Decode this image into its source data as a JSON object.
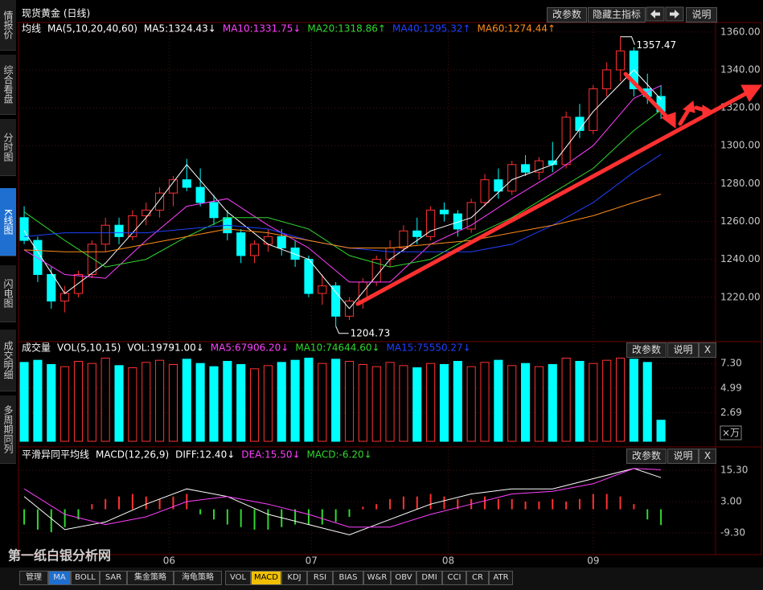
{
  "ui": {
    "sidebar": [
      "情报价",
      "综合看盘",
      "分时图",
      "K线图",
      "闪电图",
      "成交明细",
      "多周期同列"
    ],
    "main_buttons": [
      "改参数",
      "隐藏主指标",
      "说明"
    ],
    "vol_buttons": [
      "改参数",
      "说明",
      "X"
    ],
    "macd_buttons": [
      "改参数",
      "说明",
      "X"
    ],
    "toolbar": [
      "管理",
      "MA",
      "BOLL",
      "SAR",
      "集金策略",
      "海龟策略",
      "VOL",
      "MACD",
      "KDJ",
      "RSI",
      "BIAS",
      "W&R",
      "OBV",
      "DMI",
      "CCI",
      "CR",
      "ATR"
    ],
    "watermark": "第一纸白银分析网"
  },
  "chart_data": [
    {
      "type": "candlestick",
      "title": "现货黄金 (日线)",
      "label": "均线",
      "params": "MA(5,10,20,40,60)",
      "up_color": "#ff3232",
      "down_color": "#00ffff",
      "open": [
        1262,
        1250,
        1232,
        1218,
        1222,
        1232,
        1248,
        1258,
        1252,
        1263,
        1266,
        1275,
        1282,
        1278,
        1270,
        1262,
        1254,
        1242,
        1248,
        1252,
        1246,
        1240,
        1222,
        1226,
        1210,
        1218,
        1228,
        1240,
        1246,
        1255,
        1252,
        1266,
        1264,
        1256,
        1270,
        1282,
        1276,
        1290,
        1286,
        1292,
        1290,
        1315,
        1308,
        1330,
        1340,
        1350,
        1330,
        1326
      ],
      "high": [
        1268,
        1252,
        1236,
        1226,
        1234,
        1250,
        1262,
        1262,
        1266,
        1270,
        1278,
        1284,
        1293,
        1288,
        1274,
        1266,
        1256,
        1250,
        1256,
        1256,
        1250,
        1242,
        1232,
        1228,
        1220,
        1230,
        1242,
        1250,
        1258,
        1262,
        1268,
        1270,
        1266,
        1272,
        1285,
        1288,
        1292,
        1295,
        1294,
        1302,
        1318,
        1322,
        1332,
        1344,
        1357.47,
        1352,
        1338,
        1332
      ],
      "low": [
        1248,
        1228,
        1214,
        1212,
        1220,
        1230,
        1244,
        1248,
        1250,
        1258,
        1262,
        1268,
        1276,
        1268,
        1258,
        1250,
        1238,
        1238,
        1244,
        1242,
        1236,
        1220,
        1216,
        1204.73,
        1208,
        1214,
        1226,
        1236,
        1244,
        1248,
        1250,
        1260,
        1252,
        1254,
        1268,
        1272,
        1274,
        1284,
        1282,
        1286,
        1288,
        1304,
        1306,
        1326,
        1334,
        1326,
        1322,
        1314
      ],
      "close": [
        1250,
        1232,
        1218,
        1222,
        1232,
        1248,
        1258,
        1252,
        1263,
        1266,
        1275,
        1282,
        1278,
        1270,
        1262,
        1254,
        1242,
        1248,
        1252,
        1246,
        1240,
        1222,
        1226,
        1210,
        1218,
        1228,
        1240,
        1246,
        1255,
        1252,
        1266,
        1264,
        1256,
        1270,
        1282,
        1276,
        1290,
        1286,
        1292,
        1290,
        1315,
        1308,
        1330,
        1340,
        1350,
        1330,
        1326,
        1318
      ],
      "high_label": "1357.47",
      "low_label": "1204.73",
      "xlim": [
        -0.36,
        51.03
      ],
      "xticks": [
        {
          "value": 10.7,
          "label": "06"
        },
        {
          "value": 21.2,
          "label": "07"
        },
        {
          "value": 31.3,
          "label": "08"
        },
        {
          "value": 42,
          "label": "09"
        }
      ],
      "ylim": [
        1197,
        1365
      ],
      "yticks": [
        {
          "value": 1220,
          "label": "1220.00"
        },
        {
          "value": 1240,
          "label": "1240.00"
        },
        {
          "value": 1260,
          "label": "1260.00"
        },
        {
          "value": 1280,
          "label": "1280.00"
        },
        {
          "value": 1300,
          "label": "1300.00"
        },
        {
          "value": 1320,
          "label": "1320.00"
        },
        {
          "value": 1340,
          "label": "1340.00"
        },
        {
          "value": 1360,
          "label": "1360.00"
        }
      ],
      "series": [
        {
          "name": "MA5:1324.43↓",
          "color": "#ffffff",
          "x": [
            0,
            3,
            6,
            9,
            12,
            15,
            18,
            21,
            24,
            27,
            30,
            33,
            36,
            39,
            42,
            45,
            47
          ],
          "values": [
            1255,
            1222,
            1238,
            1262,
            1290,
            1265,
            1248,
            1240,
            1214,
            1240,
            1255,
            1262,
            1282,
            1290,
            1318,
            1340,
            1324.43
          ]
        },
        {
          "name": "MA10:1331.75↓",
          "color": "#ff40ff",
          "x": [
            0,
            3,
            6,
            9,
            12,
            15,
            18,
            21,
            24,
            27,
            30,
            33,
            36,
            39,
            42,
            45,
            47
          ],
          "values": [
            1245,
            1232,
            1230,
            1250,
            1268,
            1272,
            1258,
            1246,
            1228,
            1228,
            1248,
            1258,
            1272,
            1285,
            1300,
            1325,
            1331.75
          ]
        },
        {
          "name": "MA20:1318.86↑",
          "color": "#30d830",
          "x": [
            0,
            3,
            6,
            9,
            12,
            15,
            18,
            21,
            24,
            27,
            30,
            33,
            36,
            39,
            42,
            45,
            47
          ],
          "values": [
            1265,
            1250,
            1236,
            1240,
            1252,
            1262,
            1262,
            1256,
            1242,
            1236,
            1240,
            1252,
            1262,
            1275,
            1288,
            1308,
            1318.86
          ]
        },
        {
          "name": "MA40:1295.32↑",
          "color": "#2040ff",
          "x": [
            0,
            3,
            6,
            9,
            12,
            15,
            18,
            21,
            24,
            27,
            30,
            33,
            36,
            39,
            42,
            45,
            47
          ],
          "values": [
            1252,
            1254,
            1254,
            1254,
            1256,
            1258,
            1256,
            1250,
            1246,
            1244,
            1244,
            1244,
            1248,
            1258,
            1270,
            1286,
            1295.32
          ]
        },
        {
          "name": "MA60:1274.44↑",
          "color": "#ff8c1a",
          "x": [
            0,
            3,
            6,
            9,
            12,
            15,
            18,
            21,
            24,
            27,
            30,
            33,
            36,
            39,
            42,
            45,
            47
          ],
          "values": [
            1245,
            1244,
            1244,
            1248,
            1252,
            1256,
            1254,
            1250,
            1246,
            1246,
            1248,
            1250,
            1254,
            1258,
            1263,
            1270,
            1274.44
          ]
        }
      ]
    },
    {
      "type": "bar",
      "title": "成交量",
      "params": "VOL(5,10,15)",
      "unit": "×万",
      "values": [
        7.4,
        7.6,
        7.2,
        7.0,
        7.5,
        7.3,
        7.8,
        7.1,
        6.9,
        7.4,
        7.6,
        7.2,
        7.7,
        7.3,
        7.0,
        7.5,
        7.2,
        6.8,
        7.1,
        7.4,
        7.6,
        7.8,
        7.3,
        7.7,
        7.5,
        7.2,
        7.0,
        7.4,
        7.1,
        6.9,
        7.3,
        7.2,
        7.5,
        7.0,
        7.4,
        7.6,
        7.1,
        7.3,
        7.0,
        7.2,
        7.8,
        7.5,
        7.3,
        7.6,
        7.8,
        7.7,
        7.4,
        1.9791
      ],
      "ylim": [
        0,
        7.84
      ],
      "yticks": [
        {
          "value": 2.69,
          "label": "2.69"
        },
        {
          "value": 4.99,
          "label": "4.99"
        },
        {
          "value": 7.3,
          "label": "7.30"
        }
      ],
      "indicators": [
        {
          "name": "VOL:19791.00↓",
          "color": "#ffffff"
        },
        {
          "name": "MA5:67906.20↓",
          "color": "#ff40ff"
        },
        {
          "name": "MA10:74644.60↓",
          "color": "#30d830"
        },
        {
          "name": "MA15:75550.27↓",
          "color": "#2040ff"
        }
      ]
    },
    {
      "type": "macd",
      "title": "平滑异同平均线",
      "params": "MACD(12,26,9)",
      "name": "MACD:-6.20↓",
      "color": "#30d830",
      "pos_color": "#ff3232",
      "neg_color": "#30d830",
      "values": [
        -6,
        -8,
        -9,
        -7,
        -4,
        2,
        4,
        5,
        6,
        5,
        4,
        5,
        6,
        -2,
        -4,
        -6,
        -7,
        -8,
        -8,
        -7,
        -6,
        -6,
        -6,
        -5,
        -3,
        1,
        2,
        4,
        5,
        5,
        6,
        5,
        4,
        4,
        5,
        4,
        4,
        3,
        3,
        4,
        3,
        4,
        6,
        6,
        5,
        2,
        -4,
        -6.2
      ],
      "ylim": [
        -17.8,
        18.45
      ],
      "yticks": [
        {
          "value": -9.3,
          "label": "-9.30"
        },
        {
          "value": 3,
          "label": "3.00"
        },
        {
          "value": 15.3,
          "label": "15.30"
        }
      ],
      "series": [
        {
          "name": "DIFF:12.40↓",
          "color": "#ffffff",
          "x": [
            0,
            3,
            6,
            9,
            12,
            15,
            18,
            21,
            24,
            27,
            30,
            33,
            36,
            39,
            42,
            45,
            47
          ],
          "values": [
            5,
            -8,
            -5,
            2,
            8,
            5,
            -2,
            -6,
            -10,
            -4,
            2,
            6,
            8,
            8,
            12,
            16,
            12.4
          ]
        },
        {
          "name": "DEA:15.50↓",
          "color": "#ff40ff",
          "x": [
            0,
            3,
            6,
            9,
            12,
            15,
            18,
            21,
            24,
            27,
            30,
            33,
            36,
            39,
            42,
            45,
            47
          ],
          "values": [
            8,
            -2,
            -6,
            -3,
            3,
            5,
            2,
            -2,
            -7,
            -7,
            -2,
            2,
            6,
            7,
            10,
            16,
            15.5
          ]
        }
      ]
    }
  ]
}
